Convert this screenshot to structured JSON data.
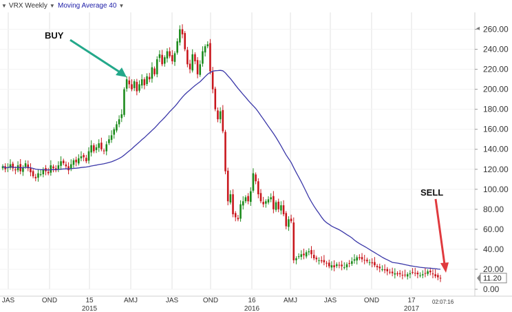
{
  "header": {
    "symbol_label": "VRX Weekly",
    "indicator_label": "Moving Average 40"
  },
  "annotations": {
    "buy": "BUY",
    "sell": "SELL"
  },
  "last_price_label": "11.20",
  "clock": "02:07:16",
  "colors": {
    "up": "#1a8a1a",
    "down": "#c8151b",
    "ma": "#3a37a8",
    "buy_arrow": "#23a88a",
    "sell_arrow": "#e03a3e"
  },
  "chart_data": {
    "type": "candlestick",
    "ylim": [
      0,
      270
    ],
    "y_ticks": [
      "260.00",
      "240.00",
      "220.00",
      "200.00",
      "180.00",
      "160.00",
      "140.00",
      "120.00",
      "100.00",
      "80.00",
      "60.00",
      "40.00",
      "20.00",
      "0.00"
    ],
    "x_ticks": [
      "JAS",
      "OND",
      "15",
      "AMJ",
      "JAS",
      "OND",
      "16",
      "AMJ",
      "JAS",
      "OND",
      "17"
    ],
    "year_labels": [
      "2015",
      "2016",
      "2017"
    ],
    "series": [
      {
        "kind": "candles",
        "close": [
          123,
          120,
          122,
          125,
          121,
          119,
          124,
          118,
          122,
          126,
          121,
          117,
          113,
          111,
          116,
          115,
          120,
          118,
          116,
          124,
          121,
          119,
          124,
          128,
          126,
          123,
          119,
          125,
          129,
          127,
          131,
          133,
          132,
          128,
          138,
          144,
          138,
          142,
          146,
          140,
          138,
          145,
          150,
          154,
          160,
          165,
          170,
          175,
          200,
          210,
          205,
          200,
          208,
          198,
          205,
          210,
          204,
          213,
          210,
          222,
          215,
          230,
          235,
          225,
          232,
          238,
          233,
          228,
          236,
          248,
          260,
          255,
          240,
          225,
          220,
          235,
          228,
          215,
          225,
          238,
          243,
          245,
          218,
          200,
          180,
          170,
          178,
          158,
          118,
          88,
          95,
          75,
          72,
          70,
          85,
          88,
          92,
          88,
          98,
          116,
          108,
          95,
          88,
          85,
          88,
          90,
          92,
          80,
          87,
          80,
          84,
          75,
          63,
          70,
          68,
          29,
          31,
          33,
          35,
          34,
          37,
          38,
          35,
          31,
          30,
          29,
          28,
          27,
          26,
          23,
          24,
          22,
          25,
          24,
          23,
          22,
          25,
          26,
          28,
          30,
          32,
          31,
          30,
          29,
          28,
          27,
          26,
          24,
          22,
          21,
          20,
          19,
          18,
          17,
          16,
          16,
          15,
          15,
          14,
          14,
          15,
          16,
          17,
          16,
          15,
          14,
          15,
          16,
          18,
          17,
          15,
          13,
          12,
          11.2
        ],
        "note": "weekly closes"
      },
      {
        "kind": "line",
        "name": "",
        "values_note": "40-period moving average"
      }
    ]
  }
}
